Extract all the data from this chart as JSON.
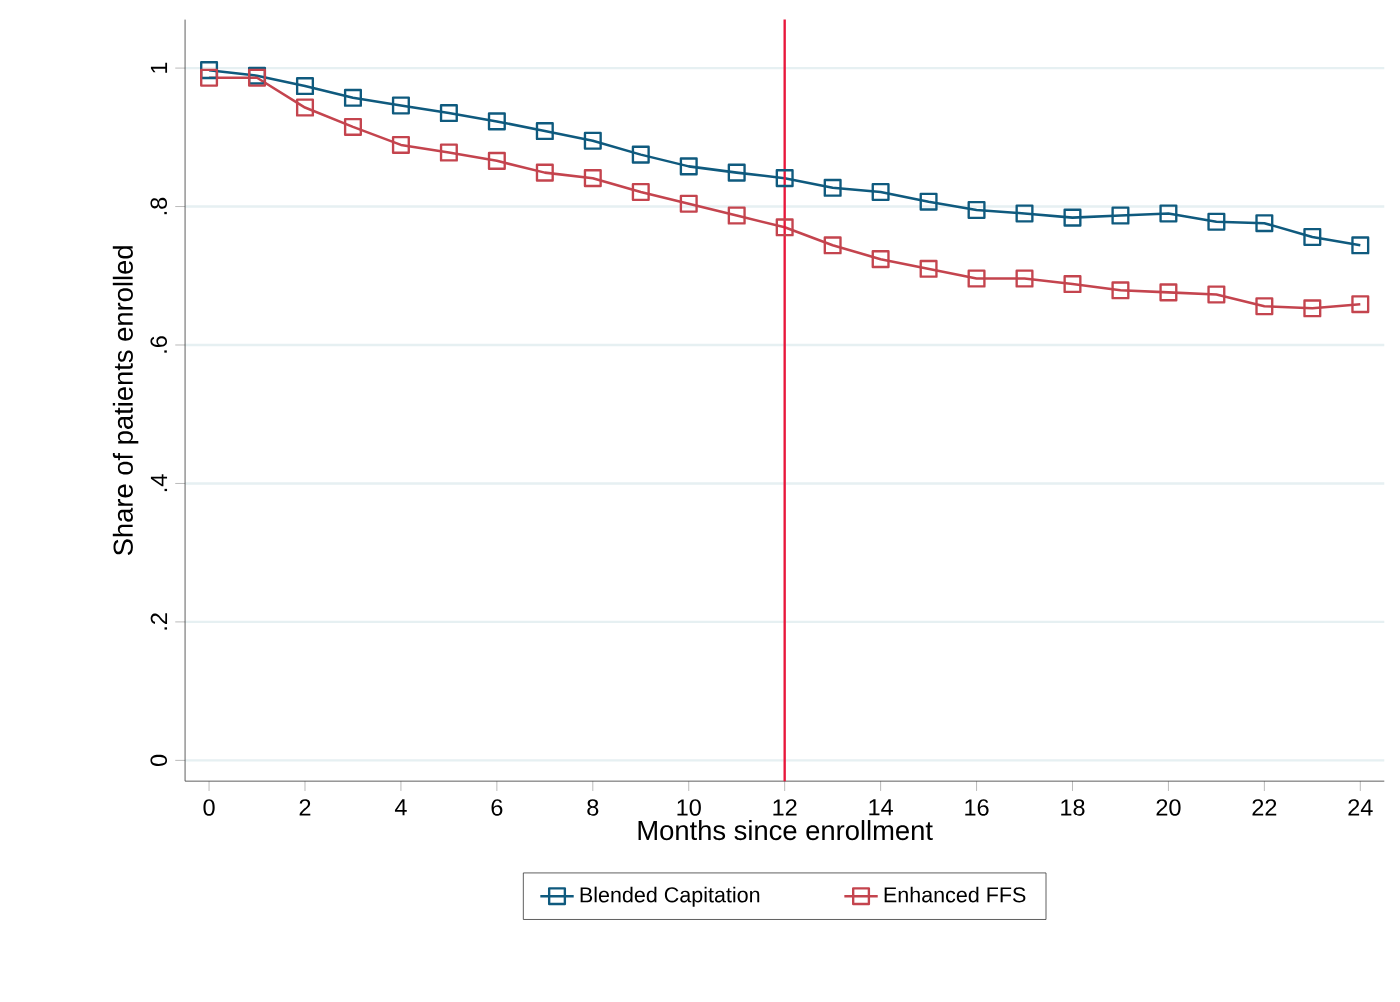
{
  "chart_data": {
    "type": "line",
    "xlabel": "Months since enrollment",
    "ylabel": "Share of patients enrolled",
    "x": [
      0,
      1,
      2,
      3,
      4,
      5,
      6,
      7,
      8,
      9,
      10,
      11,
      12,
      13,
      14,
      15,
      16,
      17,
      18,
      19,
      20,
      21,
      22,
      23,
      24
    ],
    "series": [
      {
        "name": "Blended Capitation",
        "color": "#0f5a7e",
        "marker": "square",
        "values": [
          0.997,
          0.989,
          0.974,
          0.957,
          0.946,
          0.935,
          0.923,
          0.909,
          0.895,
          0.875,
          0.858,
          0.849,
          0.841,
          0.827,
          0.821,
          0.807,
          0.795,
          0.79,
          0.784,
          0.787,
          0.79,
          0.778,
          0.776,
          0.756,
          0.744
        ]
      },
      {
        "name": "Enhanced FFS",
        "color": "#c4444e",
        "marker": "square",
        "values": [
          0.986,
          0.986,
          0.943,
          0.915,
          0.889,
          0.878,
          0.866,
          0.849,
          0.841,
          0.821,
          0.804,
          0.787,
          0.77,
          0.744,
          0.724,
          0.71,
          0.696,
          0.696,
          0.688,
          0.679,
          0.676,
          0.673,
          0.656,
          0.653,
          0.659
        ]
      }
    ],
    "xlim": [
      -0.5,
      24.5
    ],
    "ylim": [
      -0.03,
      1.07
    ],
    "xticks": [
      0,
      2,
      4,
      6,
      8,
      10,
      12,
      14,
      16,
      18,
      20,
      22,
      24
    ],
    "yticks": [
      0,
      {
        "value": 0.2,
        "label": ".2"
      },
      {
        "value": 0.4,
        "label": ".4"
      },
      {
        "value": 0.6,
        "label": ".6"
      },
      {
        "value": 0.8,
        "label": ".8"
      },
      1
    ],
    "grid": "y",
    "legend": "bottom",
    "line_style": "solid",
    "ref_lines": [
      {
        "axis": "x",
        "value": 12,
        "color": "#e8173b"
      }
    ]
  }
}
